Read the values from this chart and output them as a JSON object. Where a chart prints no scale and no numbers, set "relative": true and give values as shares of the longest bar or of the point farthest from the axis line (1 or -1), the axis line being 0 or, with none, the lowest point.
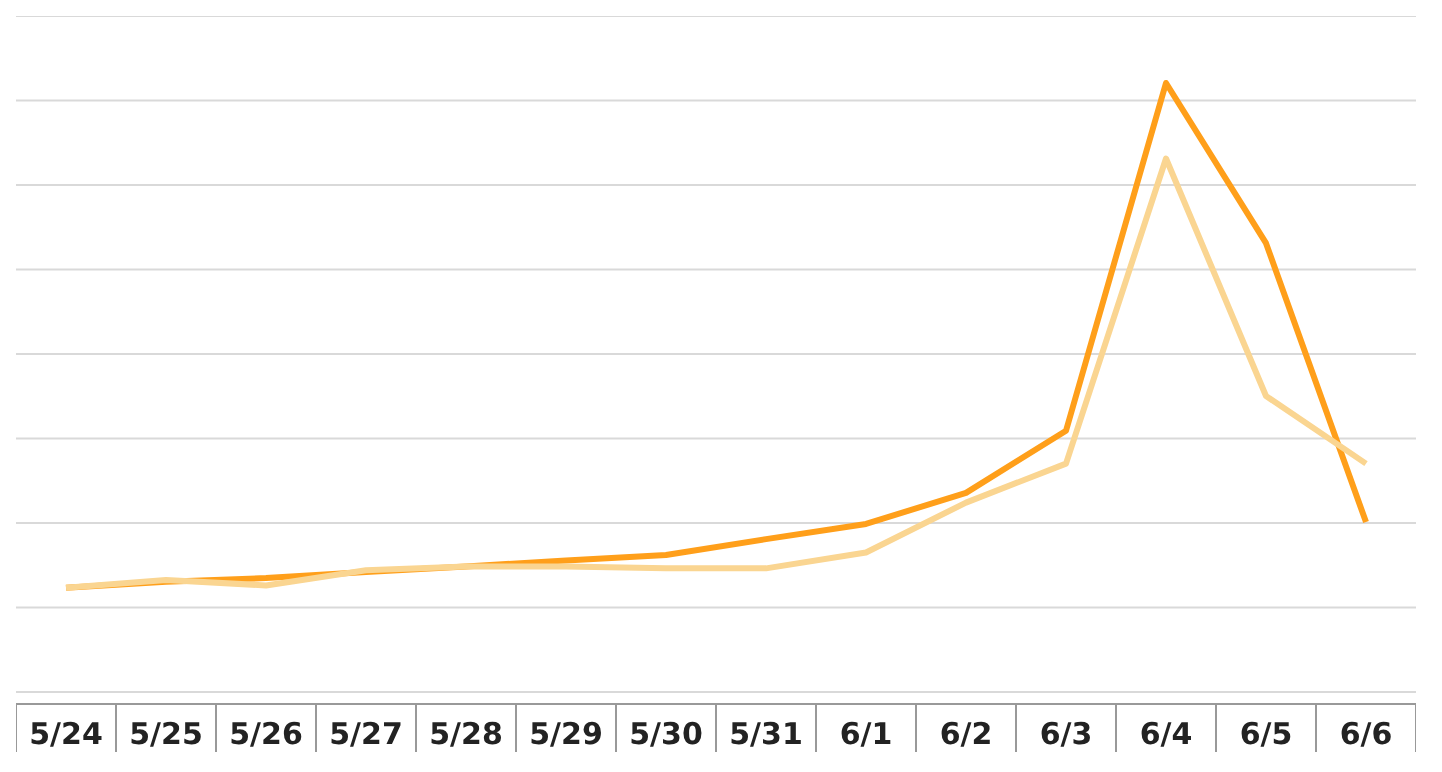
{
  "chart_data": {
    "type": "line",
    "relative": true,
    "grid": "y",
    "marker": "none",
    "line_style": "solid",
    "categories": [
      "5/24",
      "5/25",
      "5/26",
      "5/27",
      "5/28",
      "5/29",
      "5/30",
      "5/31",
      "6/1",
      "6/2",
      "6/3",
      "6/4",
      "6/5",
      "6/6"
    ],
    "series": [
      {
        "color": "#ff9f1a",
        "values": [
          0.171,
          0.181,
          0.187,
          0.197,
          0.206,
          0.216,
          0.225,
          0.251,
          0.276,
          0.327,
          0.429,
          1,
          0.737,
          0.279
        ]
      },
      {
        "color": "#fad591",
        "values": [
          0.171,
          0.184,
          0.175,
          0.2,
          0.206,
          0.206,
          0.203,
          0.203,
          0.229,
          0.311,
          0.375,
          0.876,
          0.486,
          0.375
        ]
      }
    ]
  }
}
